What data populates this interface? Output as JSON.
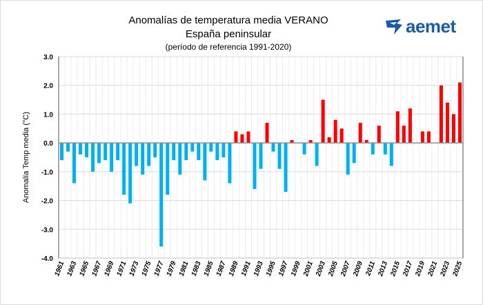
{
  "chart_data": {
    "type": "bar",
    "title": "Anomalías de temperatura media VERANO",
    "subtitle": "España peninsular",
    "subtitle2": "(período de referencia 1991-2020)",
    "xlabel": "",
    "ylabel": "Anomalía Temp media (°C)",
    "ylim": [
      -4.0,
      3.0
    ],
    "yticks": [
      "3.0",
      "2.0",
      "1.0",
      "0.0",
      "-1.0",
      "-2.0",
      "-3.0",
      "-4.0"
    ],
    "grid": true,
    "colors": {
      "positive": "#ff0000",
      "negative": "#00b0f0"
    },
    "categories": [
      1961,
      1962,
      1963,
      1964,
      1965,
      1966,
      1967,
      1968,
      1969,
      1970,
      1971,
      1972,
      1973,
      1974,
      1975,
      1976,
      1977,
      1978,
      1979,
      1980,
      1981,
      1982,
      1983,
      1984,
      1985,
      1986,
      1987,
      1988,
      1989,
      1990,
      1991,
      1992,
      1993,
      1994,
      1995,
      1996,
      1997,
      1998,
      1999,
      2000,
      2001,
      2002,
      2003,
      2004,
      2005,
      2006,
      2007,
      2008,
      2009,
      2010,
      2011,
      2012,
      2013,
      2014,
      2015,
      2016,
      2017,
      2018,
      2019,
      2020,
      2021,
      2022,
      2023,
      2024,
      2025
    ],
    "values": [
      -0.6,
      -0.3,
      -1.4,
      -0.4,
      -0.5,
      -1.0,
      -0.7,
      -0.6,
      -1.0,
      -0.6,
      -1.8,
      -2.1,
      -0.8,
      -1.1,
      -0.8,
      -0.5,
      -3.6,
      -1.8,
      -0.6,
      -1.1,
      -0.6,
      -0.3,
      -0.6,
      -1.3,
      -0.3,
      -0.6,
      -0.5,
      -1.4,
      0.4,
      0.3,
      0.4,
      -1.6,
      -0.9,
      0.7,
      -0.3,
      -0.9,
      -1.7,
      0.1,
      0.0,
      -0.4,
      0.1,
      -0.8,
      1.5,
      0.2,
      0.8,
      0.5,
      -1.1,
      -0.7,
      0.7,
      0.1,
      -0.4,
      0.6,
      -0.4,
      -0.8,
      1.1,
      0.6,
      1.2,
      0.0,
      0.4,
      0.4,
      0.0,
      2.0,
      1.4,
      1.0,
      2.1
    ]
  },
  "logo": {
    "text": "aemet",
    "color": "#1a5aa8"
  }
}
